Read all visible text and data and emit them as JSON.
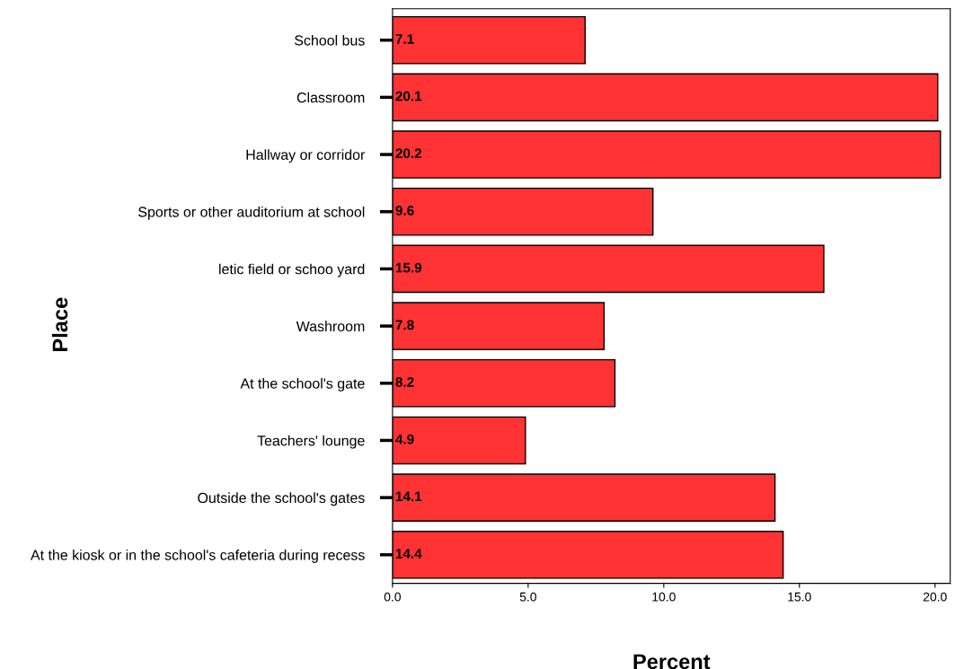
{
  "chart_data": {
    "type": "bar",
    "orientation": "horizontal",
    "xlabel": "Percent",
    "ylabel": "Place",
    "categories": [
      "School bus",
      "Classroom",
      "Hallway or corridor",
      "Sports or other auditorium at school",
      "letic field or schoo yard",
      "Washroom",
      "At the school's gate",
      "Teachers' lounge",
      "Outside the school's gates",
      "At the kiosk or in the school's cafeteria during recess"
    ],
    "values": [
      7.1,
      20.1,
      20.2,
      9.6,
      15.9,
      7.8,
      8.2,
      4.9,
      14.1,
      14.4
    ],
    "color": "#ff3333",
    "data_labels": true,
    "grid": false,
    "legend": false,
    "xlim": [
      0,
      20.56
    ],
    "xticks": [
      {
        "value": 0,
        "label": "0.0"
      },
      {
        "value": 5,
        "label": "5.0"
      },
      {
        "value": 10,
        "label": "10.0"
      },
      {
        "value": 15,
        "label": "15.0"
      },
      {
        "value": 20,
        "label": "20.0"
      }
    ]
  }
}
